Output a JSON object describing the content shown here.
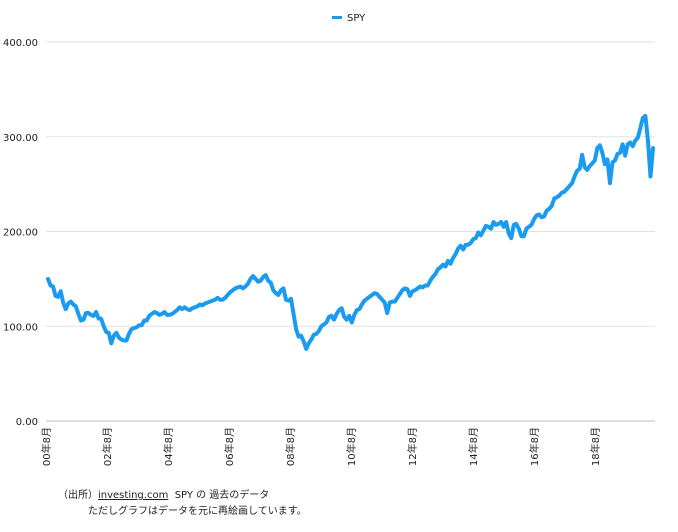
{
  "chart_data": {
    "type": "line",
    "title": "",
    "xlabel": "",
    "ylabel": "",
    "ylim": [
      0,
      400
    ],
    "yticks": [
      "0.00",
      "100.00",
      "200.00",
      "300.00",
      "400.00"
    ],
    "xticks": [
      "00年8月",
      "02年8月",
      "04年8月",
      "06年8月",
      "08年8月",
      "10年8月",
      "12年8月",
      "14年8月",
      "16年8月",
      "18年8月"
    ],
    "grid": true,
    "legend": "top-center",
    "series": [
      {
        "name": "SPY",
        "color": "#1a9bf0",
        "values": [
          150,
          143,
          142,
          132,
          131,
          137,
          125,
          118,
          124,
          126,
          123,
          121,
          113,
          106,
          107,
          114,
          114,
          112,
          111,
          115,
          108,
          108,
          100,
          94,
          93,
          82,
          90,
          93,
          88,
          86,
          85,
          85,
          92,
          97,
          98,
          99,
          101,
          101,
          106,
          106,
          111,
          113,
          115,
          114,
          112,
          113,
          115,
          112,
          112,
          113,
          115,
          117,
          120,
          118,
          120,
          118,
          117,
          119,
          120,
          121,
          123,
          122,
          124,
          125,
          126,
          127,
          128,
          130,
          128,
          128,
          130,
          133,
          136,
          138,
          140,
          141,
          142,
          140,
          142,
          145,
          150,
          153,
          150,
          147,
          148,
          152,
          154,
          148,
          146,
          138,
          135,
          133,
          138,
          140,
          128,
          127,
          129,
          113,
          97,
          89,
          90,
          84,
          76,
          82,
          86,
          91,
          92,
          95,
          100,
          102,
          104,
          110,
          111,
          107,
          113,
          117,
          119,
          110,
          107,
          111,
          104,
          112,
          117,
          118,
          123,
          127,
          129,
          131,
          133,
          135,
          134,
          131,
          128,
          125,
          114,
          125,
          126,
          126,
          130,
          134,
          138,
          140,
          139,
          132,
          137,
          138,
          140,
          142,
          141,
          143,
          143,
          148,
          152,
          155,
          160,
          162,
          165,
          163,
          169,
          166,
          172,
          176,
          182,
          185,
          181,
          186,
          186,
          188,
          192,
          193,
          199,
          196,
          201,
          206,
          205,
          203,
          210,
          207,
          208,
          210,
          205,
          210,
          198,
          193,
          207,
          208,
          203,
          195,
          195,
          203,
          205,
          207,
          213,
          217,
          218,
          215,
          216,
          222,
          224,
          227,
          235,
          236,
          238,
          241,
          242,
          245,
          248,
          251,
          258,
          264,
          266,
          281,
          268,
          265,
          269,
          272,
          275,
          288,
          291,
          283,
          271,
          276,
          251,
          273,
          275,
          282,
          283,
          292,
          280,
          292,
          294,
          290,
          296,
          299,
          309,
          320,
          322,
          296,
          258,
          288
        ]
      }
    ]
  },
  "source": {
    "prefix": "（出所）",
    "link": "investing.com",
    "rest": "SPY の 過去のデータ",
    "line2": "ただしグラフはデータを元に再絵画しています。"
  }
}
